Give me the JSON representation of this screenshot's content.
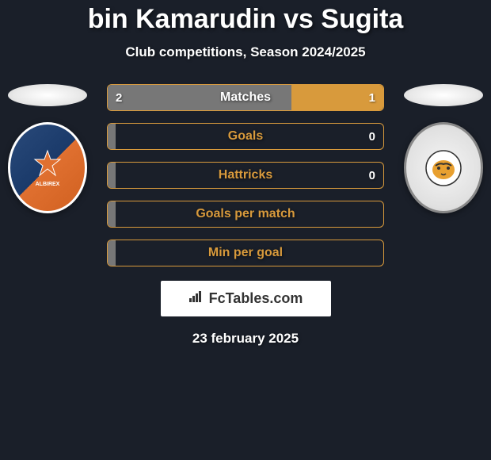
{
  "title": "bin Kamarudin vs Sugita",
  "subtitle": "Club competitions, Season 2024/2025",
  "date": "23 february 2025",
  "logo_text": "FcTables.com",
  "player_left": {
    "name": "bin Kamarudin",
    "club": "Albirex"
  },
  "player_right": {
    "name": "Sugita",
    "club": "Balestier Khalsa"
  },
  "stats": [
    {
      "label": "Matches",
      "left_value": "2",
      "right_value": "1",
      "left_width": 66.7,
      "right_width": 33.3,
      "left_bg": "#777777",
      "right_bg": "#d89a3c",
      "border_color": "#d89a3c",
      "label_color": "#ffffff"
    },
    {
      "label": "Goals",
      "left_value": "",
      "right_value": "0",
      "left_width": 0,
      "right_width": 100,
      "left_bg": "#777777",
      "right_bg": "transparent",
      "border_color": "#d89a3c",
      "label_color": "#d89a3c"
    },
    {
      "label": "Hattricks",
      "left_value": "",
      "right_value": "0",
      "left_width": 0,
      "right_width": 100,
      "left_bg": "#777777",
      "right_bg": "transparent",
      "border_color": "#d89a3c",
      "label_color": "#d89a3c"
    },
    {
      "label": "Goals per match",
      "left_value": "",
      "right_value": "",
      "left_width": 0,
      "right_width": 100,
      "left_bg": "#777777",
      "right_bg": "transparent",
      "border_color": "#d89a3c",
      "label_color": "#d89a3c"
    },
    {
      "label": "Min per goal",
      "left_value": "",
      "right_value": "",
      "left_width": 0,
      "right_width": 100,
      "left_bg": "#777777",
      "right_bg": "transparent",
      "border_color": "#d89a3c",
      "label_color": "#d89a3c"
    }
  ],
  "colors": {
    "background": "#1a1f29",
    "text": "#ffffff",
    "accent": "#d89a3c",
    "left_bar": "#777777"
  }
}
